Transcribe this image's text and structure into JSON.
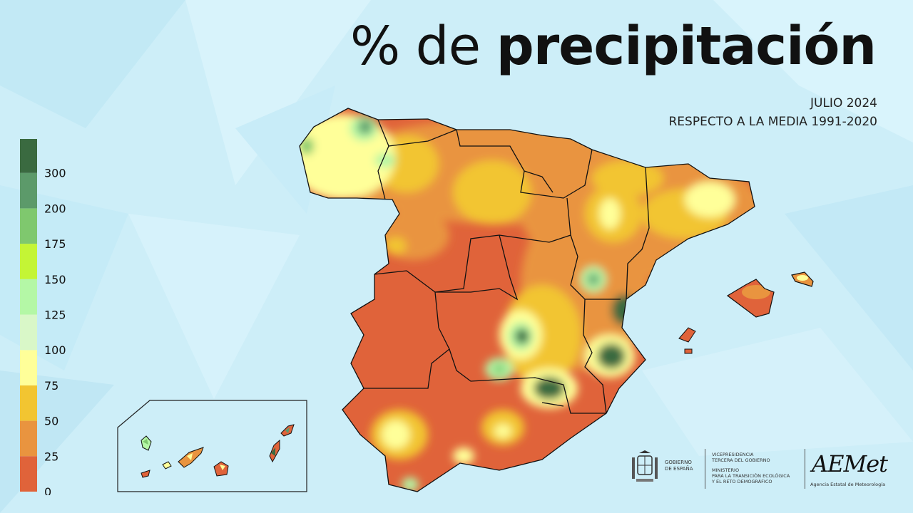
{
  "title": {
    "prefix": "% de",
    "main": "precipitación"
  },
  "subtitle": {
    "line1": "JULIO 2024",
    "line2": "RESPECTO A LA MEDIA 1991-2020"
  },
  "legend": {
    "labels": [
      "0",
      "25",
      "50",
      "75",
      "100",
      "125",
      "150",
      "175",
      "200",
      "300"
    ],
    "colors": [
      "#e0633a",
      "#e9943f",
      "#f2c531",
      "#ffff99",
      "#d9f7c8",
      "#b4f7a6",
      "#c4f535",
      "#7fc86e",
      "#5c9a6a",
      "#3a6a40"
    ]
  },
  "logos": {
    "gobierno": [
      "GOBIERNO",
      "DE ESPAÑA"
    ],
    "ministerio": [
      "VICEPRESIDENCIA",
      "TERCERA DEL GOBIERNO",
      "",
      "MINISTERIO",
      "PARA LA TRANSICIÓN ECOLÓGICA",
      "Y EL RETO DEMOGRÁFICO"
    ],
    "aemet": "AEMet",
    "aemet_sub": "Agencia Estatal de Meteorología"
  },
  "colors": {
    "background": "#cdeef8",
    "dry": "#e0633a",
    "low": "#e9943f",
    "mid": "#f2c531",
    "near": "#ffff99",
    "wet": "#b4f7a6",
    "very_wet": "#3a6a40"
  }
}
